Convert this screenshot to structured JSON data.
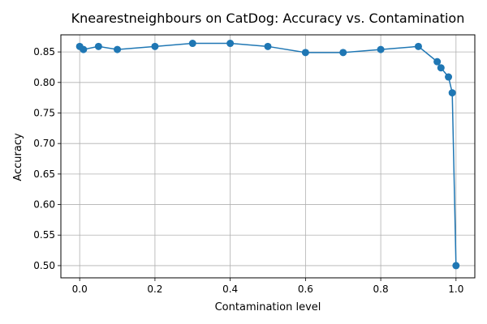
{
  "chart_data": {
    "type": "line",
    "title": "Knearestneighbours on CatDog: Accuracy vs. Contamination",
    "xlabel": "Contamination level",
    "ylabel": "Accuracy",
    "xlim": [
      -0.05,
      1.05
    ],
    "ylim": [
      0.48,
      0.878
    ],
    "xticks": [
      0.0,
      0.2,
      0.4,
      0.6,
      0.8,
      1.0
    ],
    "xtick_labels": [
      "0.0",
      "0.2",
      "0.4",
      "0.6",
      "0.8",
      "1.0"
    ],
    "yticks": [
      0.5,
      0.55,
      0.6,
      0.65,
      0.7,
      0.75,
      0.8,
      0.85
    ],
    "ytick_labels": [
      "0.50",
      "0.55",
      "0.60",
      "0.65",
      "0.70",
      "0.75",
      "0.80",
      "0.85"
    ],
    "grid": true,
    "series": [
      {
        "color": "#1f77b4",
        "marker": "circle",
        "x": [
          0.0,
          0.01,
          0.05,
          0.1,
          0.2,
          0.3,
          0.4,
          0.5,
          0.6,
          0.7,
          0.8,
          0.9,
          0.95,
          0.96,
          0.98,
          0.99,
          1.0
        ],
        "y": [
          0.859,
          0.854,
          0.859,
          0.854,
          0.859,
          0.864,
          0.864,
          0.859,
          0.849,
          0.849,
          0.854,
          0.859,
          0.834,
          0.824,
          0.809,
          0.783,
          0.5
        ]
      }
    ]
  }
}
